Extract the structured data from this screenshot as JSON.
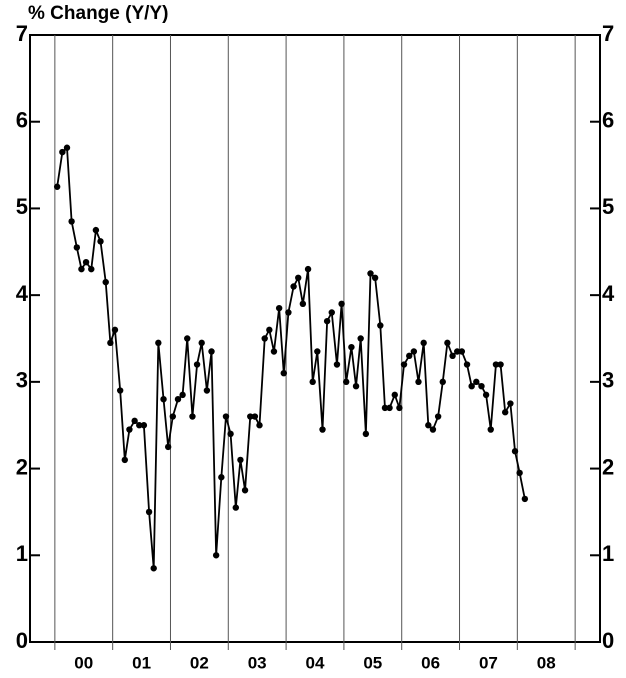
{
  "chart_data": {
    "type": "line",
    "title": "% Change (Y/Y)",
    "x": [
      0.04,
      0.13,
      0.21,
      0.29,
      0.38,
      0.46,
      0.54,
      0.63,
      0.71,
      0.79,
      0.88,
      0.96,
      1.04,
      1.13,
      1.21,
      1.29,
      1.38,
      1.46,
      1.54,
      1.63,
      1.71,
      1.79,
      1.88,
      1.96,
      2.04,
      2.13,
      2.21,
      2.29,
      2.38,
      2.46,
      2.54,
      2.63,
      2.71,
      2.79,
      2.88,
      2.96,
      3.04,
      3.13,
      3.21,
      3.29,
      3.38,
      3.46,
      3.54,
      3.63,
      3.71,
      3.79,
      3.88,
      3.96,
      4.04,
      4.13,
      4.21,
      4.29,
      4.38,
      4.46,
      4.54,
      4.63,
      4.71,
      4.79,
      4.88,
      4.96,
      5.04,
      5.13,
      5.21,
      5.29,
      5.38,
      5.46,
      5.54,
      5.63,
      5.71,
      5.79,
      5.88,
      5.96,
      6.04,
      6.13,
      6.21,
      6.29,
      6.38,
      6.46,
      6.54,
      6.63,
      6.71,
      6.79,
      6.88,
      6.96,
      7.04,
      7.13,
      7.21,
      7.29,
      7.38,
      7.46,
      7.54,
      7.63,
      7.71,
      7.79,
      7.88,
      7.96,
      8.04,
      8.13
    ],
    "values": [
      5.25,
      5.65,
      5.7,
      4.85,
      4.55,
      4.3,
      4.38,
      4.3,
      4.75,
      4.62,
      4.15,
      3.45,
      3.6,
      2.9,
      2.1,
      2.45,
      2.55,
      2.5,
      2.5,
      1.5,
      0.85,
      3.45,
      2.8,
      2.25,
      2.6,
      2.8,
      2.85,
      3.5,
      2.6,
      3.2,
      3.45,
      2.9,
      3.35,
      1.0,
      1.9,
      2.6,
      2.4,
      1.55,
      2.1,
      1.75,
      2.6,
      2.6,
      2.5,
      3.5,
      3.6,
      3.35,
      3.85,
      3.1,
      3.8,
      4.1,
      4.2,
      3.9,
      4.3,
      3.0,
      3.35,
      2.45,
      3.7,
      3.8,
      3.2,
      3.9,
      3.0,
      3.4,
      2.95,
      3.5,
      2.4,
      4.25,
      4.2,
      3.65,
      2.7,
      2.7,
      2.85,
      2.7,
      3.2,
      3.3,
      3.35,
      3.0,
      3.45,
      2.5,
      2.45,
      2.6,
      3.0,
      3.45,
      3.3,
      3.35,
      3.35,
      3.2,
      2.95,
      3.0,
      2.95,
      2.85,
      2.45,
      3.2,
      3.2,
      2.65,
      2.75,
      2.2,
      1.95,
      1.65
    ],
    "color": "#000000",
    "xlim": [
      -0.43,
      9.43
    ],
    "xticks": [
      {
        "value": 0.5,
        "label": "00"
      },
      {
        "value": 1.5,
        "label": "01"
      },
      {
        "value": 2.5,
        "label": "02"
      },
      {
        "value": 3.5,
        "label": "03"
      },
      {
        "value": 4.5,
        "label": "04"
      },
      {
        "value": 5.5,
        "label": "05"
      },
      {
        "value": 6.5,
        "label": "06"
      },
      {
        "value": 7.5,
        "label": "07"
      },
      {
        "value": 8.5,
        "label": "08"
      }
    ],
    "xgrid": [
      0,
      1,
      2,
      3,
      4,
      5,
      6,
      7,
      8,
      9
    ],
    "ylim": [
      0,
      7
    ],
    "yticks": [
      0,
      1,
      2,
      3,
      4,
      5,
      6,
      7
    ]
  }
}
